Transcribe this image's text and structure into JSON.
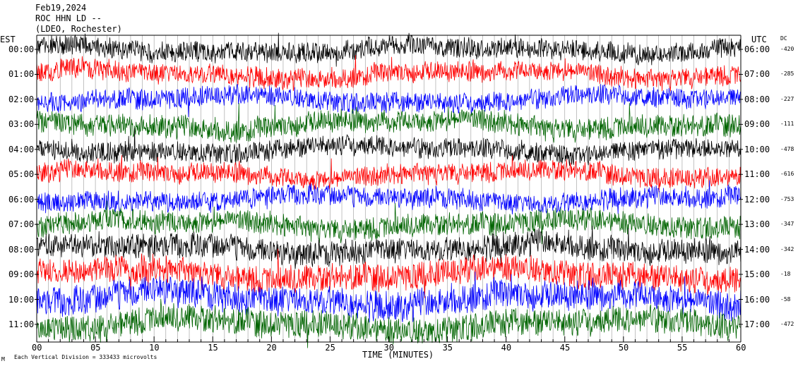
{
  "header": {
    "date": "Feb19,2024",
    "station": "ROC HHN LD --",
    "location": "(LDEO, Rochester)"
  },
  "footer": {
    "scale_note": "Each Vertical Division = 333433 microvolts",
    "corner_mark": "M"
  },
  "chart_data": {
    "type": "line",
    "title": "",
    "xlabel": "TIME (MINUTES)",
    "left_axis_label": "EST",
    "right_axis_label": "UTC",
    "dc_label": "DC",
    "xlim": [
      0,
      60
    ],
    "x_ticks": [
      "00",
      "05",
      "10",
      "15",
      "20",
      "25",
      "30",
      "35",
      "40",
      "45",
      "50",
      "55",
      "60"
    ],
    "x_tick_values": [
      0,
      5,
      10,
      15,
      20,
      25,
      30,
      35,
      40,
      45,
      50,
      55,
      60
    ],
    "grid": true,
    "trace_colors": [
      "#000000",
      "#ff0000",
      "#0000ff",
      "#006400"
    ],
    "rows": [
      {
        "est": "00:00",
        "utc": "06:00",
        "dc": "-420",
        "color": "#000000",
        "amplitude": 0.45
      },
      {
        "est": "01:00",
        "utc": "07:00",
        "dc": "-285",
        "color": "#ff0000",
        "amplitude": 0.45
      },
      {
        "est": "02:00",
        "utc": "08:00",
        "dc": "-227",
        "color": "#0000ff",
        "amplitude": 0.45
      },
      {
        "est": "03:00",
        "utc": "09:00",
        "dc": "-111",
        "color": "#006400",
        "amplitude": 0.5
      },
      {
        "est": "04:00",
        "utc": "10:00",
        "dc": "-478",
        "color": "#000000",
        "amplitude": 0.45
      },
      {
        "est": "05:00",
        "utc": "11:00",
        "dc": "-616",
        "color": "#ff0000",
        "amplitude": 0.45
      },
      {
        "est": "06:00",
        "utc": "12:00",
        "dc": "-753",
        "color": "#0000ff",
        "amplitude": 0.45
      },
      {
        "est": "07:00",
        "utc": "13:00",
        "dc": "-347",
        "color": "#006400",
        "amplitude": 0.5
      },
      {
        "est": "08:00",
        "utc": "14:00",
        "dc": "-342",
        "color": "#000000",
        "amplitude": 0.55
      },
      {
        "est": "09:00",
        "utc": "15:00",
        "dc": "-18",
        "color": "#ff0000",
        "amplitude": 0.6
      },
      {
        "est": "10:00",
        "utc": "16:00",
        "dc": "-58",
        "color": "#0000ff",
        "amplitude": 0.65
      },
      {
        "est": "11:00",
        "utc": "17:00",
        "dc": "-472",
        "color": "#006400",
        "amplitude": 0.6
      }
    ]
  }
}
